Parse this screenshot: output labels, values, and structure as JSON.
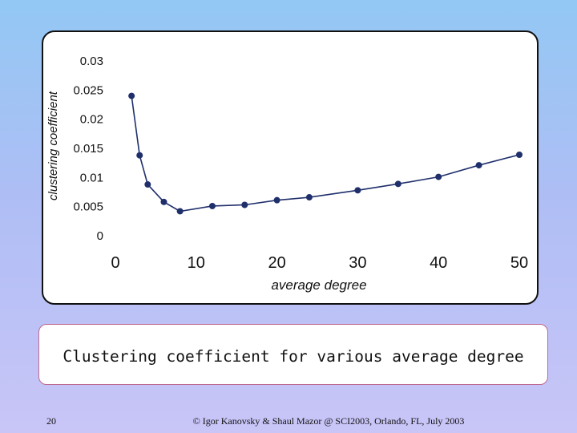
{
  "chart_data": {
    "type": "line",
    "xlabel": "average degree",
    "ylabel": "clustering coefficient",
    "xlim": [
      0,
      50
    ],
    "ylim": [
      0,
      0.03
    ],
    "xticks": [
      0,
      10,
      20,
      30,
      40,
      50
    ],
    "xtick_labels": [
      "0",
      "10",
      "20",
      "30",
      "40",
      "50"
    ],
    "yticks": [
      0,
      0.005,
      0.01,
      0.015,
      0.02,
      0.025,
      0.03
    ],
    "ytick_labels": [
      "0",
      "0.005",
      "0.01",
      "0.015",
      "0.02",
      "0.025",
      "0.03"
    ],
    "grid": false,
    "legend": false,
    "marker": "circle",
    "color": "#1f2f6b",
    "series": [
      {
        "x": [
          2,
          3,
          4,
          6,
          8,
          12,
          16,
          20,
          24,
          30,
          35,
          40,
          45,
          50
        ],
        "y": [
          0.024,
          0.0138,
          0.0088,
          0.0058,
          0.0042,
          0.0051,
          0.0053,
          0.0061,
          0.0066,
          0.0078,
          0.0089,
          0.0101,
          0.0121,
          0.0139
        ]
      }
    ]
  },
  "caption": "Clustering coefficient for various average degree",
  "footer": {
    "slide_number": "20",
    "credit": "© Igor Kanovsky & Shaul Mazor @ SCI2003, Orlando, FL, July 2003"
  }
}
